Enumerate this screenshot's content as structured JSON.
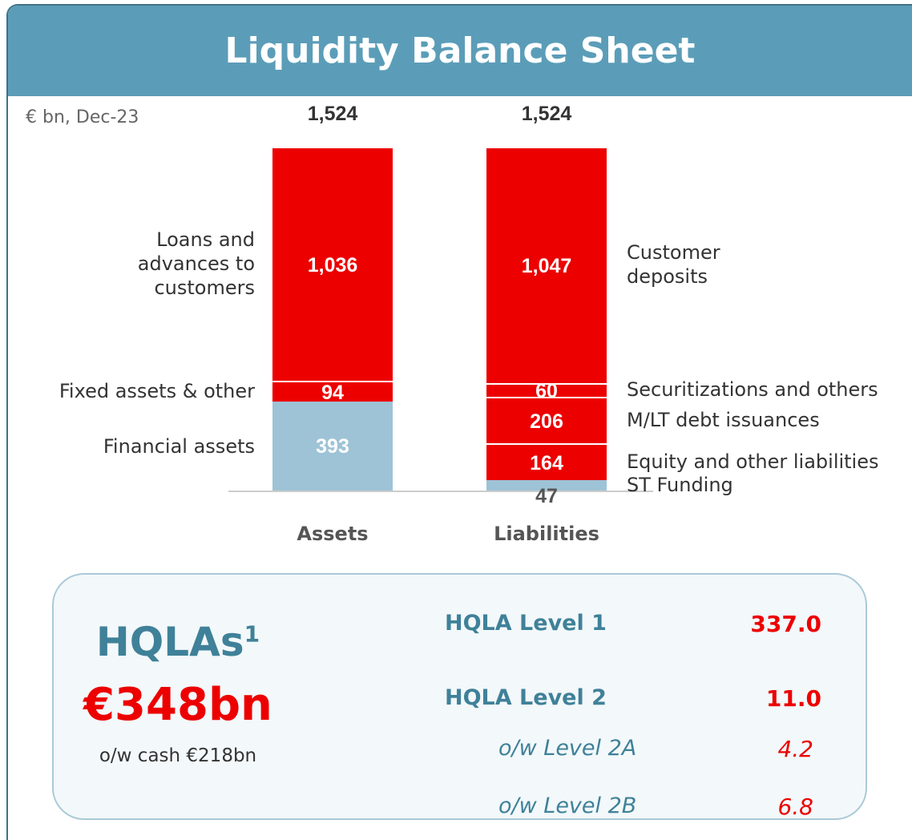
{
  "chart_data": {
    "type": "stacked_bar",
    "title": "Liquidity Balance Sheet",
    "subtitle": "€ bn, Dec-23",
    "categories": [
      "Assets",
      "Liabilities"
    ],
    "totals": [
      1524,
      1524
    ],
    "total_labels": [
      "1,524",
      "1,524"
    ],
    "stacks": [
      {
        "segments": [
          {
            "name": "Financial assets",
            "value": 393,
            "color": "#9ec3d6"
          },
          {
            "name": "Fixed assets & other",
            "value": 94,
            "color": "#ec0000"
          },
          {
            "name": "Loans and advances to customers",
            "value": 1036,
            "value_label": "1,036",
            "color": "#ec0000"
          }
        ]
      },
      {
        "segments": [
          {
            "name": "ST Funding",
            "value": 47,
            "color": "#9ec3d6"
          },
          {
            "name": "Equity and other liabilities",
            "value": 164,
            "color": "#ec0000"
          },
          {
            "name": "M/LT debt issuances",
            "value": 206,
            "color": "#ec0000"
          },
          {
            "name": "Securitizations and others",
            "value": 60,
            "color": "#ec0000"
          },
          {
            "name": "Customer deposits",
            "value": 1047,
            "value_label": "1,047",
            "color": "#ec0000"
          }
        ]
      }
    ]
  },
  "hqla": {
    "label": "HQLAs",
    "footnote": "1",
    "amount": "€348bn",
    "note": "o/w cash €218bn",
    "rows": [
      {
        "label": "HQLA Level 1",
        "value": "337.0"
      },
      {
        "label": "HQLA Level 2",
        "value": "11.0"
      },
      {
        "label": "o/w Level 2A",
        "value": "4.2"
      },
      {
        "label": "o/w Level 2B",
        "value": "6.8"
      }
    ]
  }
}
